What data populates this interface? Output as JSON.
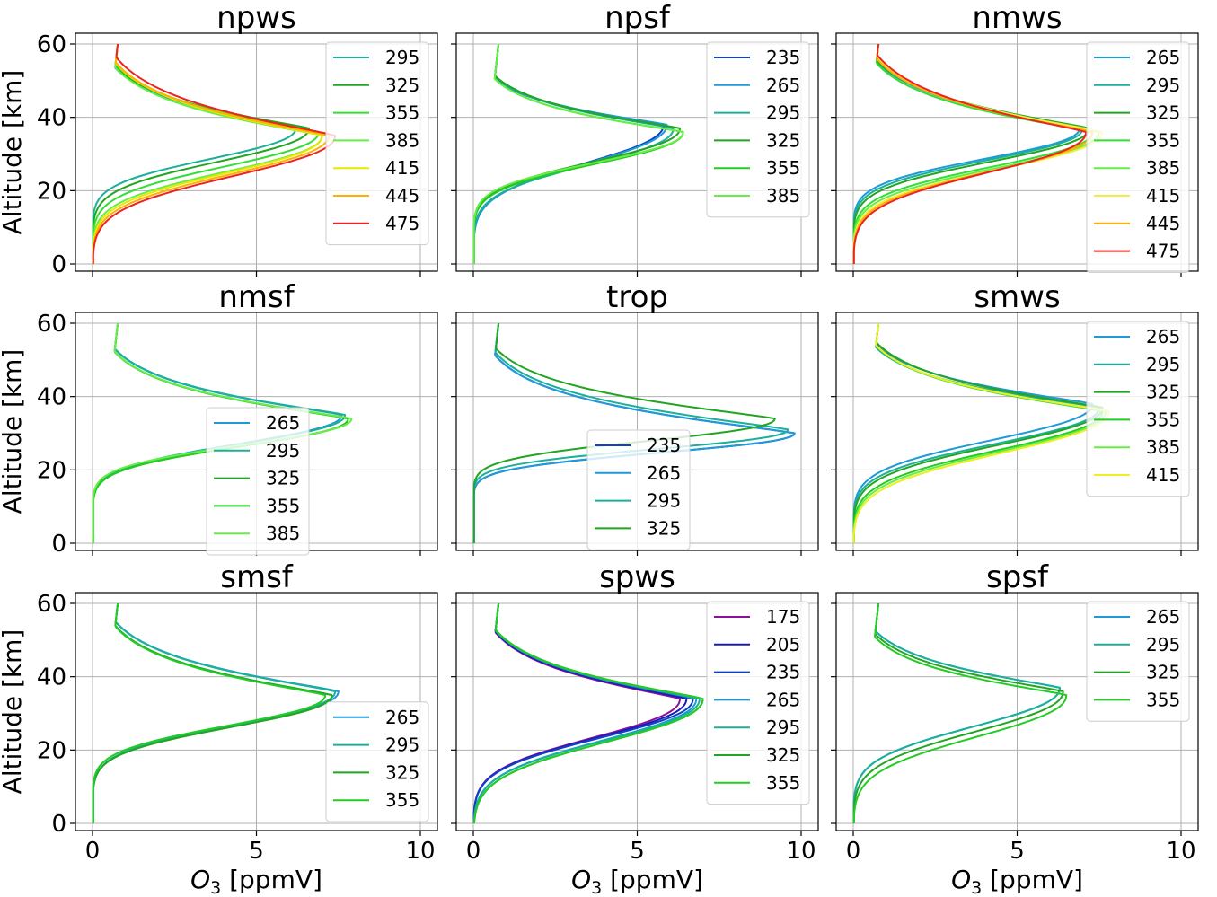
{
  "chart_data": [
    {
      "type": "line",
      "title": "npws",
      "xlim": [
        0,
        10
      ],
      "ylim": [
        0,
        60
      ],
      "xticks": [
        "0",
        "5",
        "10"
      ],
      "yticks": [
        "0",
        "20",
        "40",
        "60"
      ],
      "ylabel": "Altitude [km]",
      "xlabel": "",
      "grid": true,
      "legend": "upper right",
      "series": [
        {
          "name": "295",
          "color": "#1ab09a",
          "peak_o3": 6.2,
          "peak_alt": 37,
          "w_lo": 11,
          "w_hi": 6.5
        },
        {
          "name": "325",
          "color": "#22a522",
          "peak_o3": 6.6,
          "peak_alt": 37,
          "w_lo": 12,
          "w_hi": 6.5
        },
        {
          "name": "355",
          "color": "#33dd33",
          "peak_o3": 6.9,
          "peak_alt": 36,
          "w_lo": 12.5,
          "w_hi": 7
        },
        {
          "name": "385",
          "color": "#66ee44",
          "peak_o3": 7.0,
          "peak_alt": 35,
          "w_lo": 13,
          "w_hi": 7
        },
        {
          "name": "415",
          "color": "#e8e800",
          "peak_o3": 7.0,
          "peak_alt": 35,
          "w_lo": 13.5,
          "w_hi": 7.5
        },
        {
          "name": "445",
          "color": "#ffb000",
          "peak_o3": 7.2,
          "peak_alt": 35,
          "w_lo": 14,
          "w_hi": 7.5
        },
        {
          "name": "475",
          "color": "#ee2222",
          "peak_o3": 7.4,
          "peak_alt": 35,
          "w_lo": 14.5,
          "w_hi": 8
        }
      ]
    },
    {
      "type": "line",
      "title": "npsf",
      "xlim": [
        0,
        10
      ],
      "ylim": [
        0,
        60
      ],
      "xticks": [
        "0",
        "5",
        "10"
      ],
      "yticks": [
        "0",
        "20",
        "40",
        "60"
      ],
      "ylabel": "",
      "xlabel": "",
      "grid": true,
      "legend": "upper right",
      "series": [
        {
          "name": "235",
          "color": "#1040c8",
          "peak_o3": 5.8,
          "peak_alt": 38,
          "w_lo": 14,
          "w_hi": 5
        },
        {
          "name": "265",
          "color": "#1e9ad6",
          "peak_o3": 5.9,
          "peak_alt": 38,
          "w_lo": 14,
          "w_hi": 5
        },
        {
          "name": "295",
          "color": "#1ab09a",
          "peak_o3": 6.1,
          "peak_alt": 37,
          "w_lo": 13,
          "w_hi": 5.5
        },
        {
          "name": "325",
          "color": "#22a522",
          "peak_o3": 6.3,
          "peak_alt": 37,
          "w_lo": 12,
          "w_hi": 5.5
        },
        {
          "name": "355",
          "color": "#22cc22",
          "peak_o3": 6.4,
          "peak_alt": 36,
          "w_lo": 11.5,
          "w_hi": 5.5
        },
        {
          "name": "385",
          "color": "#66ee44",
          "peak_o3": 6.4,
          "peak_alt": 36,
          "w_lo": 11,
          "w_hi": 5.5
        }
      ]
    },
    {
      "type": "line",
      "title": "nmws",
      "xlim": [
        0,
        10
      ],
      "ylim": [
        0,
        60
      ],
      "xticks": [
        "0",
        "5",
        "10"
      ],
      "yticks": [
        "0",
        "20",
        "40",
        "60"
      ],
      "ylabel": "",
      "xlabel": "",
      "grid": true,
      "legend": "upper right",
      "series": [
        {
          "name": "265",
          "color": "#1e9ad6",
          "peak_o3": 6.9,
          "peak_alt": 37,
          "w_lo": 11,
          "w_hi": 7
        },
        {
          "name": "295",
          "color": "#1ab09a",
          "peak_o3": 7.0,
          "peak_alt": 37,
          "w_lo": 11.5,
          "w_hi": 7
        },
        {
          "name": "325",
          "color": "#22a522",
          "peak_o3": 7.2,
          "peak_alt": 37,
          "w_lo": 12,
          "w_hi": 7
        },
        {
          "name": "355",
          "color": "#33dd33",
          "peak_o3": 7.3,
          "peak_alt": 36,
          "w_lo": 12.5,
          "w_hi": 7
        },
        {
          "name": "385",
          "color": "#66ee44",
          "peak_o3": 7.5,
          "peak_alt": 36,
          "w_lo": 13,
          "w_hi": 7.5
        },
        {
          "name": "415",
          "color": "#eeee44",
          "peak_o3": 7.6,
          "peak_alt": 36,
          "w_lo": 13.5,
          "w_hi": 7.5
        },
        {
          "name": "445",
          "color": "#ffb000",
          "peak_o3": 7.3,
          "peak_alt": 36,
          "w_lo": 14,
          "w_hi": 7.5
        },
        {
          "name": "475",
          "color": "#ee2222",
          "peak_o3": 7.1,
          "peak_alt": 36,
          "w_lo": 14.5,
          "w_hi": 8
        }
      ]
    },
    {
      "type": "line",
      "title": "nmsf",
      "xlim": [
        0,
        10
      ],
      "ylim": [
        0,
        60
      ],
      "xticks": [
        "0",
        "5",
        "10"
      ],
      "yticks": [
        "0",
        "20",
        "40",
        "60"
      ],
      "ylabel": "Altitude [km]",
      "xlabel": "",
      "grid": true,
      "legend": "center",
      "series": [
        {
          "name": "265",
          "color": "#1e9ad6",
          "peak_o3": 7.6,
          "peak_alt": 35,
          "w_lo": 10.5,
          "w_hi": 6.5
        },
        {
          "name": "295",
          "color": "#1ab09a",
          "peak_o3": 7.7,
          "peak_alt": 35,
          "w_lo": 10.5,
          "w_hi": 6.5
        },
        {
          "name": "325",
          "color": "#22a522",
          "peak_o3": 7.8,
          "peak_alt": 34,
          "w_lo": 10,
          "w_hi": 6.5
        },
        {
          "name": "355",
          "color": "#22cc22",
          "peak_o3": 7.8,
          "peak_alt": 34,
          "w_lo": 10,
          "w_hi": 6.5
        },
        {
          "name": "385",
          "color": "#66ee44",
          "peak_o3": 7.9,
          "peak_alt": 34,
          "w_lo": 9.5,
          "w_hi": 6.5
        }
      ]
    },
    {
      "type": "line",
      "title": "trop",
      "xlim": [
        0,
        10
      ],
      "ylim": [
        0,
        60
      ],
      "xticks": [
        "0",
        "5",
        "10"
      ],
      "yticks": [
        "0",
        "20",
        "40",
        "60"
      ],
      "ylabel": "",
      "xlabel": "",
      "grid": true,
      "legend": "lower center",
      "series": [
        {
          "name": "235",
          "color": "#1040c8",
          "peak_o3": 9.8,
          "peak_alt": 30,
          "w_lo": 7,
          "w_hi": 7
        },
        {
          "name": "265",
          "color": "#1e9ad6",
          "peak_o3": 9.8,
          "peak_alt": 30,
          "w_lo": 7,
          "w_hi": 7
        },
        {
          "name": "295",
          "color": "#1ab09a",
          "peak_o3": 9.6,
          "peak_alt": 31,
          "w_lo": 7,
          "w_hi": 7
        },
        {
          "name": "325",
          "color": "#22a522",
          "peak_o3": 9.2,
          "peak_alt": 34,
          "w_lo": 8,
          "w_hi": 6.5
        }
      ]
    },
    {
      "type": "line",
      "title": "smws",
      "xlim": [
        0,
        10
      ],
      "ylim": [
        0,
        60
      ],
      "xticks": [
        "0",
        "5",
        "10"
      ],
      "yticks": [
        "0",
        "20",
        "40",
        "60"
      ],
      "ylabel": "",
      "xlabel": "",
      "grid": true,
      "legend": "upper right",
      "series": [
        {
          "name": "265",
          "color": "#1e9ad6",
          "peak_o3": 7.3,
          "peak_alt": 38,
          "w_lo": 13,
          "w_hi": 6
        },
        {
          "name": "295",
          "color": "#1ab09a",
          "peak_o3": 7.5,
          "peak_alt": 37,
          "w_lo": 13,
          "w_hi": 6
        },
        {
          "name": "325",
          "color": "#22a522",
          "peak_o3": 7.6,
          "peak_alt": 37,
          "w_lo": 13.5,
          "w_hi": 6.5
        },
        {
          "name": "355",
          "color": "#22cc22",
          "peak_o3": 7.6,
          "peak_alt": 36,
          "w_lo": 14,
          "w_hi": 6.5
        },
        {
          "name": "385",
          "color": "#66ee44",
          "peak_o3": 7.7,
          "peak_alt": 36,
          "w_lo": 14.5,
          "w_hi": 6.5
        },
        {
          "name": "415",
          "color": "#eeee22",
          "peak_o3": 7.8,
          "peak_alt": 36,
          "w_lo": 15,
          "w_hi": 6.5
        }
      ]
    },
    {
      "type": "line",
      "title": "smsf",
      "xlim": [
        0,
        10
      ],
      "ylim": [
        0,
        60
      ],
      "xticks": [
        "0",
        "5",
        "10"
      ],
      "yticks": [
        "0",
        "20",
        "40",
        "60"
      ],
      "ylabel": "Altitude [km]",
      "xlabel": "O3 [ppmV]",
      "grid": true,
      "legend": "lower right",
      "series": [
        {
          "name": "265",
          "color": "#1e9ad6",
          "peak_o3": 7.5,
          "peak_alt": 36,
          "w_lo": 12,
          "w_hi": 7
        },
        {
          "name": "295",
          "color": "#1ab09a",
          "peak_o3": 7.4,
          "peak_alt": 36,
          "w_lo": 12,
          "w_hi": 7
        },
        {
          "name": "325",
          "color": "#22a522",
          "peak_o3": 7.3,
          "peak_alt": 35,
          "w_lo": 11.5,
          "w_hi": 7
        },
        {
          "name": "355",
          "color": "#22cc22",
          "peak_o3": 7.1,
          "peak_alt": 35,
          "w_lo": 11,
          "w_hi": 7
        }
      ]
    },
    {
      "type": "line",
      "title": "spws",
      "xlim": [
        0,
        10
      ],
      "ylim": [
        0,
        60
      ],
      "xticks": [
        "0",
        "5",
        "10"
      ],
      "yticks": [
        "0",
        "20",
        "40",
        "60"
      ],
      "ylabel": "",
      "xlabel": "O3 [ppmV]",
      "grid": true,
      "legend": "upper right",
      "series": [
        {
          "name": "175",
          "color": "#8a129a",
          "peak_o3": 6.3,
          "peak_alt": 34,
          "w_lo": 14,
          "w_hi": 7
        },
        {
          "name": "205",
          "color": "#1a1ab4",
          "peak_o3": 6.5,
          "peak_alt": 34,
          "w_lo": 14,
          "w_hi": 7
        },
        {
          "name": "235",
          "color": "#1040c8",
          "peak_o3": 6.7,
          "peak_alt": 34,
          "w_lo": 14,
          "w_hi": 7
        },
        {
          "name": "265",
          "color": "#1e9ad6",
          "peak_o3": 6.8,
          "peak_alt": 34,
          "w_lo": 15,
          "w_hi": 7
        },
        {
          "name": "295",
          "color": "#1ab09a",
          "peak_o3": 6.9,
          "peak_alt": 34,
          "w_lo": 15,
          "w_hi": 7
        },
        {
          "name": "325",
          "color": "#22a522",
          "peak_o3": 7.0,
          "peak_alt": 34,
          "w_lo": 15.5,
          "w_hi": 7
        },
        {
          "name": "355",
          "color": "#22cc22",
          "peak_o3": 7.0,
          "peak_alt": 34,
          "w_lo": 15.5,
          "w_hi": 7
        }
      ]
    },
    {
      "type": "line",
      "title": "spsf",
      "xlim": [
        0,
        10
      ],
      "ylim": [
        0,
        60
      ],
      "xticks": [
        "0",
        "5",
        "10"
      ],
      "yticks": [
        "0",
        "20",
        "40",
        "60"
      ],
      "ylabel": "",
      "xlabel": "O3 [ppmV]",
      "grid": true,
      "legend": "upper right",
      "series": [
        {
          "name": "265",
          "color": "#1e9ad6",
          "peak_o3": 6.3,
          "peak_alt": 37,
          "w_lo": 14,
          "w_hi": 6
        },
        {
          "name": "295",
          "color": "#1ab09a",
          "peak_o3": 6.3,
          "peak_alt": 37,
          "w_lo": 14,
          "w_hi": 6
        },
        {
          "name": "325",
          "color": "#22a522",
          "peak_o3": 6.4,
          "peak_alt": 36,
          "w_lo": 14.5,
          "w_hi": 6
        },
        {
          "name": "355",
          "color": "#22cc22",
          "peak_o3": 6.5,
          "peak_alt": 35,
          "w_lo": 15,
          "w_hi": 6
        }
      ]
    }
  ]
}
